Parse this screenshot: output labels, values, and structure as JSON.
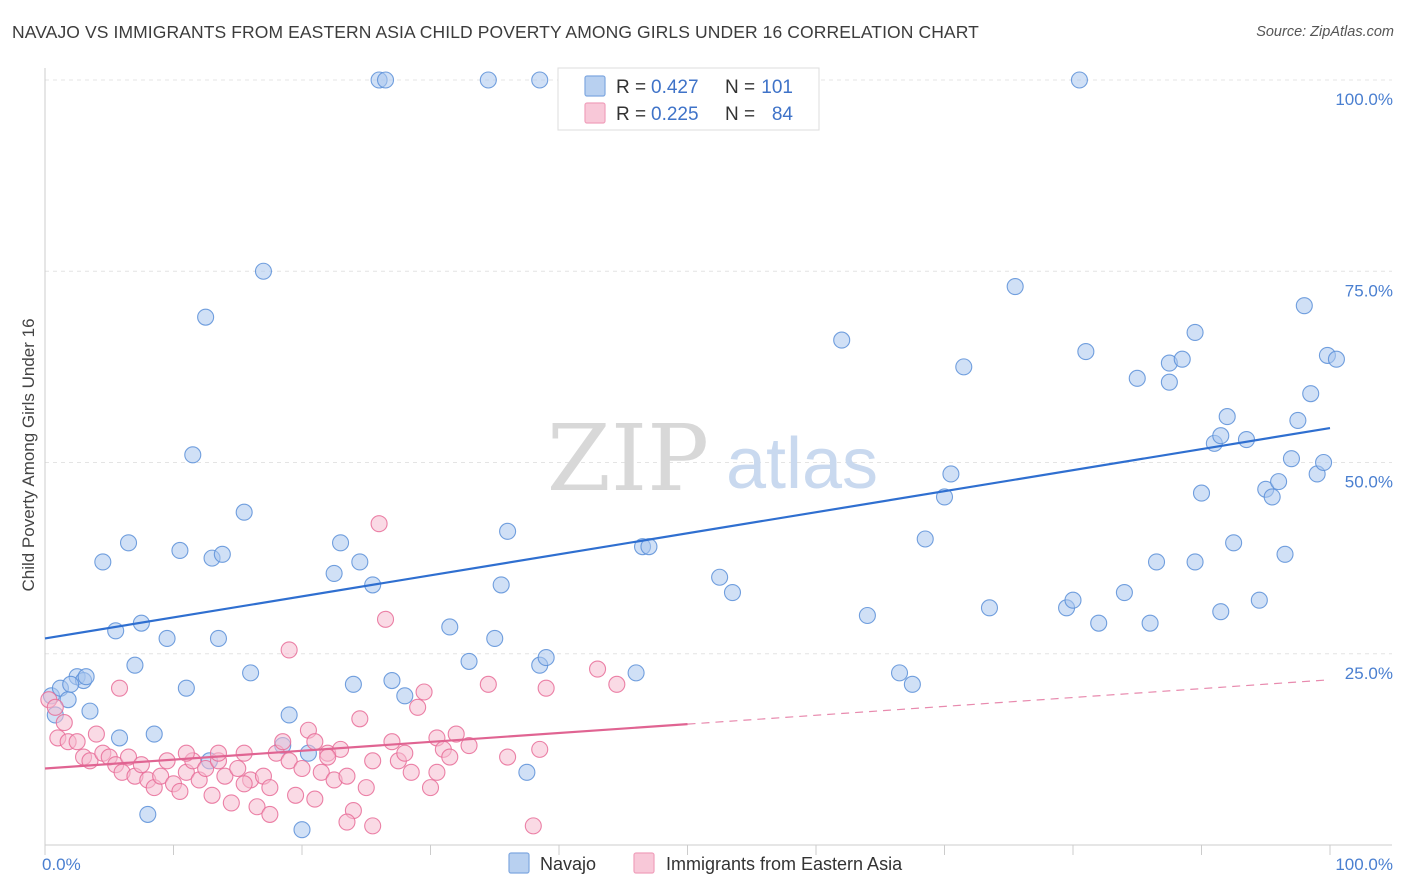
{
  "header": {
    "title": "NAVAJO VS IMMIGRANTS FROM EASTERN ASIA CHILD POVERTY AMONG GIRLS UNDER 16 CORRELATION CHART",
    "source": "Source: ZipAtlas.com"
  },
  "watermark": {
    "zip": "ZIP",
    "atlas": "atlas"
  },
  "legend": {
    "r_label": "R =",
    "n_label": "N =",
    "rows": [
      {
        "r": "0.427",
        "n": "101",
        "color": "#7fa8e0",
        "fill": "#b8d0f0"
      },
      {
        "r": "0.225",
        "n": "84",
        "color": "#f0a0bc",
        "fill": "#f8c8d8"
      }
    ]
  },
  "chart_data": {
    "type": "scatter",
    "title": "NAVAJO VS IMMIGRANTS FROM EASTERN ASIA CHILD POVERTY AMONG GIRLS UNDER 16 CORRELATION CHART",
    "xlabel": "",
    "ylabel": "Child Poverty Among Girls Under 16",
    "xlim": [
      0,
      100
    ],
    "ylim": [
      0,
      100
    ],
    "x_tick_labels": [
      "0.0%",
      "100.0%"
    ],
    "y_tick_values": [
      25,
      50,
      75,
      100
    ],
    "y_tick_labels": [
      "25.0%",
      "50.0%",
      "75.0%",
      "100.0%"
    ],
    "grid": true,
    "legend_position": "top-center",
    "series": [
      {
        "name": "Navajo",
        "color": "#5b8fd8",
        "fill": "#a9c6ee",
        "trend": {
          "x": [
            0,
            100
          ],
          "y": [
            27.0,
            54.5
          ]
        },
        "points": [
          [
            0.5,
            19.5
          ],
          [
            0.8,
            17.0
          ],
          [
            1.2,
            20.5
          ],
          [
            1.8,
            19.0
          ],
          [
            2.5,
            22.0
          ],
          [
            3.5,
            17.5
          ],
          [
            3.0,
            21.5
          ],
          [
            4.5,
            37.0
          ],
          [
            5.5,
            28.0
          ],
          [
            6.5,
            39.5
          ],
          [
            7.0,
            23.5
          ],
          [
            7.5,
            29.0
          ],
          [
            8.5,
            14.5
          ],
          [
            9.5,
            27.0
          ],
          [
            10.5,
            38.5
          ],
          [
            11.0,
            20.5
          ],
          [
            11.5,
            51.0
          ],
          [
            12.5,
            69.0
          ],
          [
            12.8,
            11.0
          ],
          [
            13.0,
            37.5
          ],
          [
            13.5,
            27.0
          ],
          [
            13.8,
            38.0
          ],
          [
            15.5,
            43.5
          ],
          [
            16.0,
            22.5
          ],
          [
            17.0,
            75.0
          ],
          [
            18.5,
            13.0
          ],
          [
            19.0,
            17.0
          ],
          [
            20.0,
            2.0
          ],
          [
            20.5,
            12.0
          ],
          [
            22.5,
            35.5
          ],
          [
            23.0,
            39.5
          ],
          [
            24.0,
            21.0
          ],
          [
            24.5,
            37.0
          ],
          [
            25.5,
            34.0
          ],
          [
            27.0,
            21.5
          ],
          [
            28.0,
            19.5
          ],
          [
            26.0,
            100.0
          ],
          [
            26.5,
            100.0
          ],
          [
            34.5,
            100.0
          ],
          [
            38.5,
            100.0
          ],
          [
            31.5,
            28.5
          ],
          [
            33.0,
            24.0
          ],
          [
            35.0,
            27.0
          ],
          [
            35.5,
            34.0
          ],
          [
            36.0,
            41.0
          ],
          [
            37.5,
            9.5
          ],
          [
            38.5,
            23.5
          ],
          [
            39.0,
            24.5
          ],
          [
            46.0,
            22.5
          ],
          [
            46.5,
            39.0
          ],
          [
            47.0,
            39.0
          ],
          [
            52.5,
            35.0
          ],
          [
            53.5,
            33.0
          ],
          [
            62.0,
            66.0
          ],
          [
            64.0,
            30.0
          ],
          [
            66.5,
            22.5
          ],
          [
            67.5,
            21.0
          ],
          [
            68.5,
            40.0
          ],
          [
            70.0,
            45.5
          ],
          [
            70.5,
            48.5
          ],
          [
            71.5,
            62.5
          ],
          [
            73.5,
            31.0
          ],
          [
            75.5,
            73.0
          ],
          [
            79.5,
            31.0
          ],
          [
            80.0,
            32.0
          ],
          [
            81.0,
            64.5
          ],
          [
            82.0,
            29.0
          ],
          [
            84.0,
            33.0
          ],
          [
            85.0,
            61.0
          ],
          [
            86.0,
            29.0
          ],
          [
            86.5,
            37.0
          ],
          [
            87.5,
            63.0
          ],
          [
            87.5,
            60.5
          ],
          [
            88.5,
            63.5
          ],
          [
            89.5,
            67.0
          ],
          [
            89.5,
            37.0
          ],
          [
            90.0,
            46.0
          ],
          [
            91.0,
            52.5
          ],
          [
            91.5,
            30.5
          ],
          [
            91.5,
            53.5
          ],
          [
            92.0,
            56.0
          ],
          [
            92.5,
            39.5
          ],
          [
            93.5,
            53.0
          ],
          [
            94.5,
            32.0
          ],
          [
            95.0,
            46.5
          ],
          [
            95.5,
            45.5
          ],
          [
            96.0,
            47.5
          ],
          [
            96.5,
            38.0
          ],
          [
            97.0,
            50.5
          ],
          [
            97.5,
            55.5
          ],
          [
            98.0,
            70.5
          ],
          [
            98.5,
            59.0
          ],
          [
            99.0,
            48.5
          ],
          [
            99.5,
            50.0
          ],
          [
            99.8,
            64.0
          ],
          [
            100.5,
            63.5
          ],
          [
            8.0,
            4.0
          ],
          [
            5.8,
            14.0
          ],
          [
            2.0,
            21.0
          ],
          [
            80.5,
            100.0
          ],
          [
            3.2,
            22.0
          ]
        ]
      },
      {
        "name": "Immigrants from Eastern Asia",
        "color": "#e86c98",
        "fill": "#f6bcd0",
        "trend": {
          "x": [
            0,
            50
          ],
          "y": [
            10.0,
            15.8
          ]
        },
        "trend_extension": {
          "x": [
            50,
            100
          ],
          "y": [
            15.8,
            21.6
          ]
        },
        "points": [
          [
            0.3,
            19.0
          ],
          [
            0.8,
            18.0
          ],
          [
            1.0,
            14.0
          ],
          [
            1.5,
            16.0
          ],
          [
            1.8,
            13.5
          ],
          [
            2.5,
            13.5
          ],
          [
            3.0,
            11.5
          ],
          [
            3.5,
            11.0
          ],
          [
            4.0,
            14.5
          ],
          [
            4.5,
            12.0
          ],
          [
            5.0,
            11.5
          ],
          [
            5.5,
            10.5
          ],
          [
            6.0,
            9.5
          ],
          [
            5.8,
            20.5
          ],
          [
            6.5,
            11.5
          ],
          [
            7.0,
            9.0
          ],
          [
            7.5,
            10.5
          ],
          [
            8.0,
            8.5
          ],
          [
            8.5,
            7.5
          ],
          [
            9.0,
            9.0
          ],
          [
            9.5,
            11.0
          ],
          [
            10.0,
            8.0
          ],
          [
            10.5,
            7.0
          ],
          [
            11.0,
            9.5
          ],
          [
            11.5,
            11.0
          ],
          [
            12.0,
            8.5
          ],
          [
            12.5,
            10.0
          ],
          [
            13.0,
            6.5
          ],
          [
            13.5,
            11.0
          ],
          [
            14.0,
            9.0
          ],
          [
            14.5,
            5.5
          ],
          [
            15.0,
            10.0
          ],
          [
            15.5,
            12.0
          ],
          [
            16.0,
            8.5
          ],
          [
            16.5,
            5.0
          ],
          [
            17.0,
            9.0
          ],
          [
            17.5,
            7.5
          ],
          [
            18.0,
            12.0
          ],
          [
            18.5,
            13.5
          ],
          [
            19.0,
            11.0
          ],
          [
            19.5,
            6.5
          ],
          [
            20.0,
            10.0
          ],
          [
            20.5,
            15.0
          ],
          [
            21.0,
            6.0
          ],
          [
            21.5,
            9.5
          ],
          [
            22.0,
            12.0
          ],
          [
            22.5,
            8.5
          ],
          [
            23.0,
            12.5
          ],
          [
            23.5,
            9.0
          ],
          [
            24.0,
            4.5
          ],
          [
            24.5,
            16.5
          ],
          [
            25.0,
            7.5
          ],
          [
            25.5,
            11.0
          ],
          [
            26.0,
            42.0
          ],
          [
            26.5,
            29.5
          ],
          [
            27.0,
            13.5
          ],
          [
            27.5,
            11.0
          ],
          [
            28.0,
            12.0
          ],
          [
            28.5,
            9.5
          ],
          [
            29.0,
            18.0
          ],
          [
            29.5,
            20.0
          ],
          [
            30.0,
            7.5
          ],
          [
            30.5,
            14.0
          ],
          [
            31.0,
            12.5
          ],
          [
            31.5,
            11.5
          ],
          [
            32.0,
            14.5
          ],
          [
            33.0,
            13.0
          ],
          [
            34.5,
            21.0
          ],
          [
            36.0,
            11.5
          ],
          [
            38.0,
            2.5
          ],
          [
            39.0,
            20.5
          ],
          [
            43.0,
            23.0
          ],
          [
            44.5,
            21.0
          ],
          [
            19.0,
            25.5
          ],
          [
            11.0,
            12.0
          ],
          [
            13.5,
            12.0
          ],
          [
            15.5,
            8.0
          ],
          [
            17.5,
            4.0
          ],
          [
            21.0,
            13.5
          ],
          [
            23.5,
            3.0
          ],
          [
            25.5,
            2.5
          ],
          [
            30.5,
            9.5
          ],
          [
            38.5,
            12.5
          ],
          [
            22.0,
            11.5
          ]
        ]
      }
    ]
  },
  "bottom_legend": {
    "items": [
      {
        "label": "Navajo",
        "color": "#7fa8e0",
        "fill": "#b8d0f0"
      },
      {
        "label": "Immigrants from Eastern Asia",
        "color": "#f0a0bc",
        "fill": "#f8c8d8"
      }
    ]
  }
}
